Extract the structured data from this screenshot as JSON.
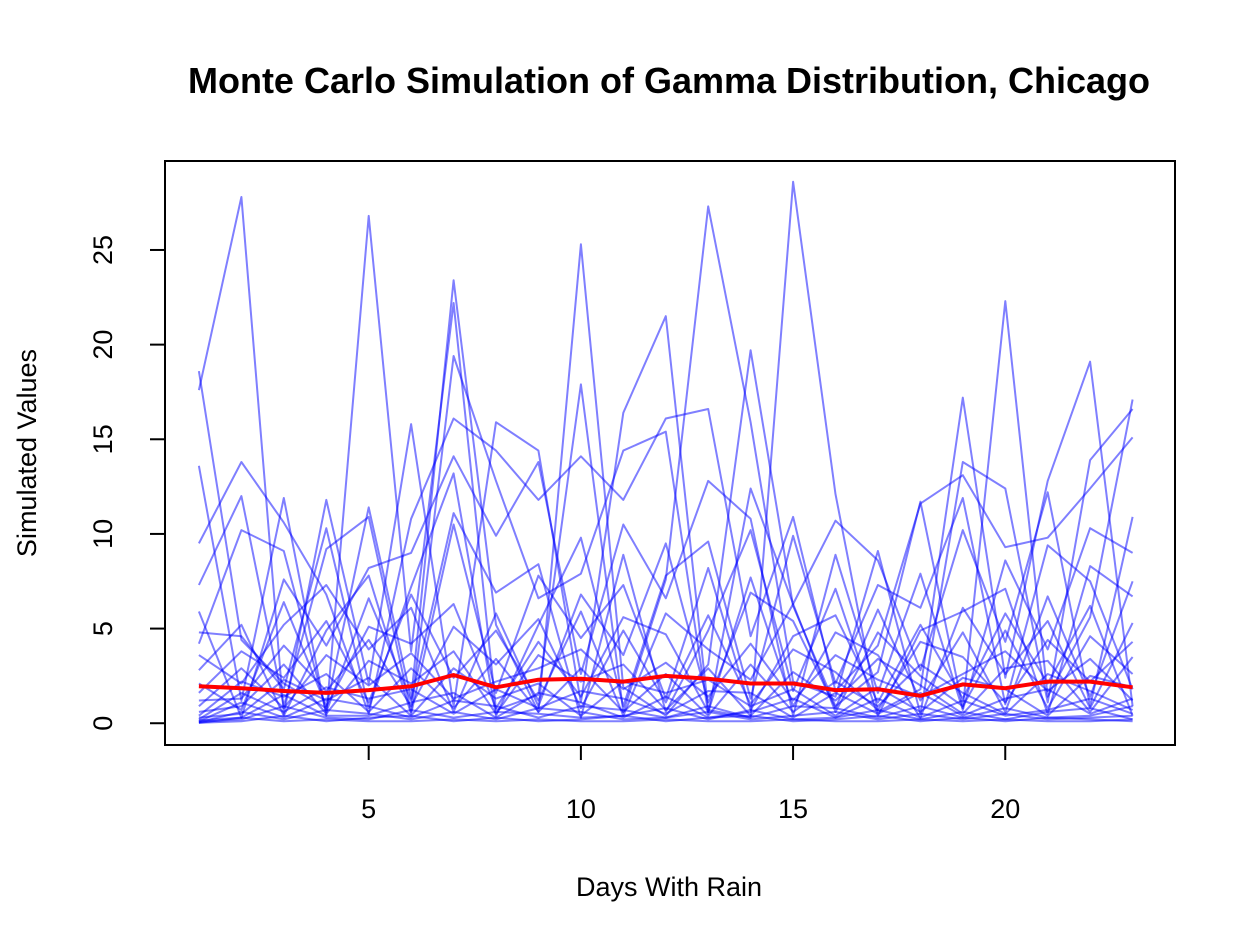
{
  "chart_data": {
    "type": "line",
    "title": "Monte Carlo Simulation of Gamma Distribution, Chicago",
    "xlabel": "Days With Rain",
    "ylabel": "Simulated Values",
    "xlim": [
      0.2,
      24.0
    ],
    "ylim": [
      -1.15,
      29.7
    ],
    "x_ticks": [
      5,
      10,
      15,
      20
    ],
    "y_ticks": [
      0,
      5,
      10,
      15,
      20,
      25
    ],
    "x": [
      1,
      2,
      3,
      4,
      5,
      6,
      7,
      8,
      9,
      10,
      11,
      12,
      13,
      14,
      15,
      16,
      17,
      18,
      19,
      20,
      21,
      22,
      23
    ],
    "grid": false,
    "legend": "none",
    "simulation_color": "#0000ff",
    "mean_color": "#ff0000",
    "series": [
      {
        "values": [
          18.6,
          4.4,
          2.1,
          0.8,
          11.4,
          1.3,
          23.4,
          5.2,
          0.6,
          25.3,
          1.9,
          0.4,
          3.1,
          19.7,
          6.2,
          0.9,
          2.7,
          11.7,
          0.8,
          22.3,
          1.4,
          5.6,
          17.1
        ]
      },
      {
        "values": [
          17.6,
          27.8,
          0.5,
          11.8,
          2.1,
          15.8,
          0.9,
          15.9,
          14.4,
          1.1,
          16.4,
          21.5,
          0.7,
          0.3,
          28.6,
          12.1,
          0.6,
          1.8,
          17.2,
          2.4,
          12.8,
          19.1,
          0.9
        ]
      },
      {
        "values": [
          13.6,
          1.2,
          11.9,
          0.4,
          26.8,
          3.8,
          22.2,
          0.7,
          1.5,
          17.9,
          0.6,
          7.6,
          27.3,
          15.9,
          2.2,
          1.4,
          9.1,
          0.5,
          13.8,
          12.4,
          1.1,
          13.9,
          16.6
        ]
      },
      {
        "values": [
          9.5,
          13.8,
          10.6,
          6.8,
          0.5,
          10.8,
          16.1,
          14.4,
          11.8,
          14.1,
          11.8,
          16.1,
          16.6,
          4.6,
          10.9,
          1.7,
          4.1,
          11.6,
          13.1,
          9.3,
          9.8,
          12.4,
          15.1
        ]
      },
      {
        "values": [
          7.3,
          12.0,
          0.9,
          9.2,
          10.9,
          0.6,
          19.4,
          12.8,
          6.6,
          7.9,
          14.4,
          15.4,
          0.5,
          12.4,
          6.3,
          10.7,
          8.6,
          2.8,
          10.2,
          4.3,
          12.2,
          0.9,
          10.9
        ]
      },
      {
        "values": [
          5.9,
          0.3,
          7.6,
          4.1,
          8.2,
          9.0,
          14.1,
          9.9,
          13.8,
          2.6,
          10.5,
          6.6,
          12.8,
          10.8,
          0.4,
          8.9,
          1.6,
          7.9,
          0.7,
          8.6,
          3.9,
          10.3,
          9.0
        ]
      },
      {
        "values": [
          4.8,
          4.6,
          1.8,
          10.3,
          0.8,
          7.2,
          13.2,
          0.4,
          5.2,
          9.8,
          0.9,
          7.8,
          9.6,
          1.3,
          9.9,
          2.1,
          7.3,
          6.1,
          11.9,
          1.0,
          9.4,
          7.5,
          1.8
        ]
      },
      {
        "values": [
          4.2,
          10.2,
          9.1,
          0.6,
          6.6,
          1.2,
          11.1,
          6.9,
          8.4,
          0.3,
          8.9,
          0.6,
          4.9,
          10.2,
          1.7,
          7.1,
          0.4,
          4.9,
          5.9,
          7.1,
          0.5,
          8.3,
          6.7
        ]
      },
      {
        "values": [
          3.6,
          2.1,
          5.2,
          7.3,
          3.9,
          6.1,
          0.6,
          5.8,
          0.9,
          6.8,
          3.6,
          9.5,
          1.1,
          6.9,
          5.4,
          0.8,
          6.0,
          1.2,
          4.8,
          0.6,
          6.7,
          1.4,
          7.5
        ]
      },
      {
        "values": [
          2.8,
          5.2,
          0.4,
          4.9,
          7.8,
          0.5,
          10.5,
          1.6,
          7.8,
          4.5,
          7.3,
          1.3,
          8.2,
          0.7,
          4.6,
          5.7,
          1.1,
          5.2,
          1.3,
          5.8,
          2.1,
          6.2,
          0.4
        ]
      },
      {
        "values": [
          2.1,
          0.7,
          6.4,
          0.9,
          5.1,
          4.2,
          6.3,
          0.8,
          4.3,
          1.4,
          5.6,
          4.7,
          0.6,
          7.7,
          0.9,
          4.8,
          3.6,
          0.3,
          6.1,
          2.6,
          5.4,
          0.8,
          5.3
        ]
      },
      {
        "values": [
          1.6,
          3.8,
          2.4,
          5.4,
          1.1,
          6.8,
          2.4,
          4.9,
          1.2,
          5.9,
          0.4,
          5.8,
          3.9,
          2.3,
          6.3,
          0.6,
          4.8,
          2.5,
          0.9,
          4.9,
          0.8,
          4.6,
          2.6
        ]
      },
      {
        "values": [
          1.2,
          1.3,
          4.1,
          1.7,
          4.4,
          0.9,
          5.1,
          3.1,
          5.5,
          0.8,
          4.9,
          1.1,
          5.7,
          1.0,
          3.9,
          2.7,
          0.7,
          4.3,
          3.5,
          1.1,
          4.4,
          2.2,
          4.3
        ]
      },
      {
        "values": [
          0.9,
          2.9,
          0.8,
          3.6,
          2.0,
          3.7,
          1.3,
          2.2,
          2.9,
          3.9,
          1.8,
          3.2,
          1.4,
          4.2,
          1.2,
          3.6,
          2.3,
          1.4,
          2.6,
          3.8,
          1.7,
          3.4,
          1.2
        ]
      },
      {
        "values": [
          0.6,
          0.9,
          3.1,
          0.5,
          3.3,
          2.1,
          3.8,
          0.5,
          3.6,
          2.2,
          3.1,
          0.7,
          2.9,
          0.4,
          2.7,
          1.2,
          3.4,
          2.0,
          0.5,
          2.9,
          3.3,
          0.6,
          3.5
        ]
      },
      {
        "values": [
          0.4,
          2.2,
          1.4,
          2.6,
          0.6,
          2.9,
          0.8,
          3.4,
          0.6,
          2.9,
          0.6,
          2.6,
          0.4,
          3.1,
          0.6,
          2.2,
          0.9,
          3.1,
          1.6,
          0.5,
          2.6,
          1.7,
          0.7
        ]
      },
      {
        "values": [
          0.3,
          0.5,
          2.3,
          1.2,
          2.4,
          0.4,
          2.9,
          1.3,
          2.1,
          0.4,
          2.2,
          1.6,
          2.3,
          0.9,
          1.8,
          0.4,
          1.9,
          0.6,
          2.4,
          1.8,
          0.4,
          2.5,
          1.9
        ]
      },
      {
        "values": [
          0.2,
          1.6,
          0.6,
          1.9,
          1.3,
          1.8,
          0.5,
          1.8,
          0.8,
          1.7,
          1.3,
          0.5,
          1.7,
          1.6,
          0.3,
          1.6,
          0.5,
          1.6,
          0.4,
          1.3,
          1.8,
          0.5,
          1.3
        ]
      },
      {
        "values": [
          0.15,
          0.3,
          1.5,
          0.4,
          0.4,
          1.1,
          1.6,
          0.3,
          1.6,
          1.1,
          0.3,
          1.4,
          0.3,
          0.6,
          1.3,
          0.3,
          1.3,
          0.3,
          1.2,
          0.4,
          0.7,
          1.3,
          0.5
        ]
      },
      {
        "values": [
          0.1,
          1.1,
          0.3,
          1.3,
          0.9,
          0.3,
          1.2,
          0.9,
          0.3,
          0.9,
          0.7,
          0.3,
          0.9,
          0.3,
          0.9,
          0.8,
          0.3,
          0.9,
          0.3,
          0.8,
          0.3,
          0.4,
          0.9
        ]
      },
      {
        "values": [
          0.08,
          0.2,
          0.9,
          0.3,
          0.2,
          0.7,
          0.3,
          0.6,
          0.5,
          0.3,
          0.4,
          0.8,
          0.2,
          0.7,
          0.2,
          0.3,
          0.7,
          0.2,
          0.6,
          0.2,
          0.6,
          0.8,
          0.2
        ]
      },
      {
        "values": [
          0.05,
          0.6,
          0.2,
          0.7,
          0.5,
          0.2,
          0.6,
          0.2,
          0.8,
          0.6,
          0.2,
          0.3,
          0.6,
          0.2,
          0.4,
          0.6,
          0.2,
          0.5,
          0.2,
          0.5,
          0.2,
          0.3,
          0.4
        ]
      },
      {
        "values": [
          0.03,
          0.1,
          0.4,
          0.1,
          0.3,
          0.4,
          0.1,
          0.3,
          0.1,
          0.2,
          0.4,
          0.1,
          0.3,
          0.4,
          0.1,
          0.2,
          0.4,
          0.1,
          0.3,
          0.1,
          0.3,
          0.2,
          0.1
        ]
      },
      {
        "values": [
          0.02,
          0.3,
          0.1,
          0.2,
          0.1,
          0.1,
          0.2,
          0.1,
          0.2,
          0.1,
          0.1,
          0.2,
          0.1,
          0.1,
          0.2,
          0.1,
          0.1,
          0.2,
          0.1,
          0.2,
          0.1,
          0.1,
          0.2
        ]
      }
    ],
    "mean_series": {
      "values": [
        1.95,
        1.85,
        1.7,
        1.6,
        1.75,
        1.95,
        2.55,
        1.9,
        2.3,
        2.35,
        2.2,
        2.5,
        2.35,
        2.1,
        2.1,
        1.75,
        1.8,
        1.45,
        2.05,
        1.85,
        2.2,
        2.2,
        1.9
      ]
    }
  }
}
